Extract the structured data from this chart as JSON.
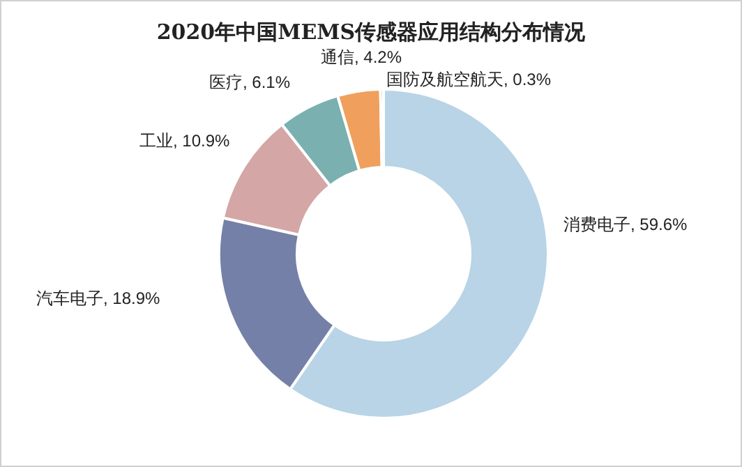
{
  "chart_data": {
    "type": "donut",
    "title": "2020年中国MEMS传感器应用结构分布情况",
    "categories": [
      "消费电子",
      "汽车电子",
      "工业",
      "医疗",
      "通信",
      "国防及航空航天"
    ],
    "values": [
      59.6,
      18.9,
      10.9,
      6.1,
      4.2,
      0.3
    ],
    "value_labels": [
      "59.6%",
      "18.9%",
      "10.9%",
      "6.1%",
      "4.2%",
      "0.3%"
    ],
    "colors": [
      "#b8d4e6",
      "#7580a8",
      "#d4a6a6",
      "#7ab0b0",
      "#f0a05c",
      "#a5a5a5"
    ]
  }
}
